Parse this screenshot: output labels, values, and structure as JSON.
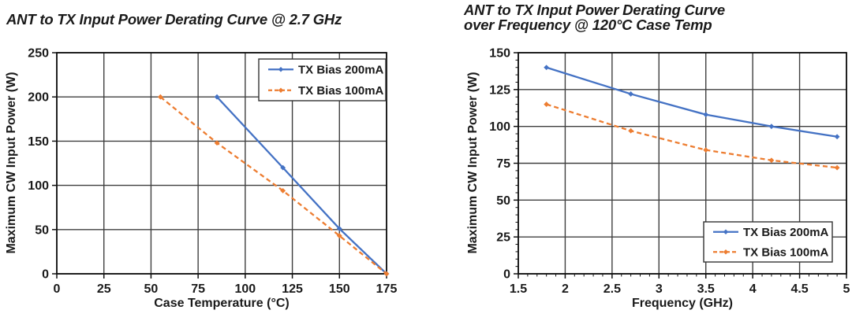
{
  "colors": {
    "series1_blue": "#4472c4",
    "series2_orange": "#ed7d31",
    "grid": "#3f3f3f",
    "axis": "#111111",
    "text": "#1a1a1a",
    "background": "#ffffff"
  },
  "chart_data": [
    {
      "type": "line",
      "title": "ANT to TX Input Power Derating Curve @ 2.7 GHz",
      "title_lines": [
        "ANT to TX Input Power Derating Curve @ 2.7 GHz"
      ],
      "xlabel": "Case Temperature (°C)",
      "ylabel": "Maximum CW Input Power (W)",
      "xlim": [
        0,
        175
      ],
      "ylim": [
        0,
        250
      ],
      "xticks": [
        0,
        25,
        50,
        75,
        100,
        125,
        150,
        175
      ],
      "xtick_labels": [
        "0",
        "25",
        "50",
        "75",
        "100",
        "125",
        "150",
        "175"
      ],
      "yticks": [
        0,
        50,
        100,
        150,
        200,
        250
      ],
      "ytick_labels": [
        "0",
        "50",
        "100",
        "150",
        "200",
        "250"
      ],
      "grid": true,
      "legend_pos": "top-right",
      "series": [
        {
          "name": "TX Bias 200mA",
          "color": "#4472c4",
          "style": "solid",
          "marker": "diamond",
          "points": [
            [
              85,
              200
            ],
            [
              120,
              120
            ],
            [
              150,
              51
            ],
            [
              175,
              0
            ]
          ]
        },
        {
          "name": "TX Bias 100mA",
          "color": "#ed7d31",
          "style": "dashed",
          "marker": "diamond",
          "points": [
            [
              55,
              200
            ],
            [
              85,
              148
            ],
            [
              120,
              94
            ],
            [
              150,
              43
            ],
            [
              175,
              0
            ]
          ]
        }
      ]
    },
    {
      "type": "line",
      "title": "ANT to TX Input Power Derating Curve over Frequency @ 120°C Case Temp",
      "title_lines": [
        "ANT to TX Input Power Derating Curve",
        "over Frequency @ 120°C Case Temp"
      ],
      "xlabel": "Frequency (GHz)",
      "ylabel": "Maximum CW Input Power (W)",
      "xlim": [
        1.5,
        5
      ],
      "ylim": [
        0,
        150
      ],
      "xticks": [
        1.5,
        2,
        2.5,
        3,
        3.5,
        4,
        4.5,
        5
      ],
      "xtick_labels": [
        "1.5",
        "2",
        "2.5",
        "3",
        "3.5",
        "4",
        "4.5",
        "5"
      ],
      "yticks": [
        0,
        25,
        50,
        75,
        100,
        125,
        150
      ],
      "ytick_labels": [
        "0",
        "25",
        "50",
        "75",
        "100",
        "125",
        "150"
      ],
      "x_minor_step": 0.1,
      "y_minor_step": 5,
      "grid": true,
      "legend_pos": "bottom-right",
      "series": [
        {
          "name": "TX Bias 200mA",
          "color": "#4472c4",
          "style": "solid",
          "marker": "diamond",
          "points": [
            [
              1.8,
              140
            ],
            [
              2.7,
              122
            ],
            [
              3.5,
              108
            ],
            [
              4.2,
              100
            ],
            [
              4.9,
              93
            ]
          ]
        },
        {
          "name": "TX Bias 100mA",
          "color": "#ed7d31",
          "style": "dashed",
          "marker": "diamond",
          "points": [
            [
              1.8,
              115
            ],
            [
              2.7,
              97
            ],
            [
              3.5,
              84
            ],
            [
              4.2,
              77
            ],
            [
              4.9,
              72
            ]
          ]
        }
      ]
    }
  ]
}
